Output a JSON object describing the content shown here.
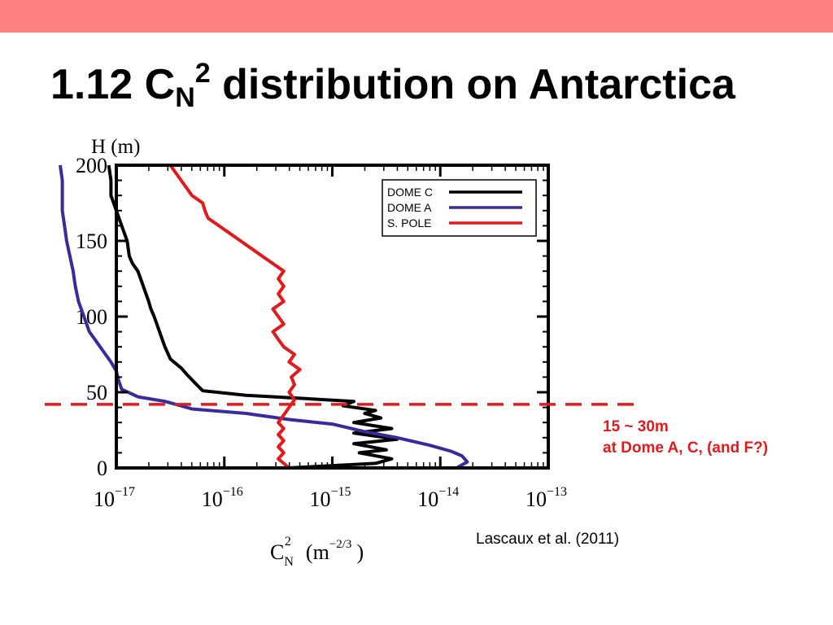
{
  "slide": {
    "title_prefix": "1.12 C",
    "title_sub": "N",
    "title_sup": "2",
    "title_rest": " distribution on Antarctica",
    "accent_color": "#ff8080"
  },
  "annotation": {
    "line1": "15 ~ 30m",
    "line2": "at Dome A, C, (and F?)",
    "color": "#e31a1c"
  },
  "citation": "Lascaux et al. (2011)",
  "chart_data": {
    "type": "line",
    "y_axis_label": "H (m)",
    "x_axis_label": {
      "base": "C",
      "sub": "N",
      "sup": "2",
      "unit_open": "(m",
      "unit_exp": "−2/3",
      "unit_close": ")"
    },
    "x_scale": "log",
    "xlim": [
      1e-17,
      1e-13
    ],
    "ylim": [
      0,
      200
    ],
    "y_ticks": [
      "0",
      "50",
      "100",
      "150",
      "200"
    ],
    "x_ticks": [
      {
        "base": "10",
        "exp": "−17"
      },
      {
        "base": "10",
        "exp": "−16"
      },
      {
        "base": "10",
        "exp": "−15"
      },
      {
        "base": "10",
        "exp": "−14"
      },
      {
        "base": "10",
        "exp": "−13"
      }
    ],
    "grid": false,
    "legend_position": "top-right",
    "threshold_line": {
      "h": 42,
      "color": "#e31a1c",
      "style": "dashed"
    },
    "series": [
      {
        "name": "DOME C",
        "color": "#000000",
        "points": [
          [
            -15.4,
            0
          ],
          [
            -14.6,
            3
          ],
          [
            -14.45,
            6
          ],
          [
            -14.75,
            10
          ],
          [
            -14.5,
            12
          ],
          [
            -14.8,
            16
          ],
          [
            -14.4,
            19
          ],
          [
            -14.8,
            23
          ],
          [
            -14.45,
            26
          ],
          [
            -14.8,
            30
          ],
          [
            -14.55,
            33
          ],
          [
            -14.7,
            36
          ],
          [
            -14.6,
            38
          ],
          [
            -14.9,
            41
          ],
          [
            -14.8,
            44
          ],
          [
            -15.3,
            46
          ],
          [
            -15.8,
            48
          ],
          [
            -16.2,
            51
          ],
          [
            -16.27,
            56
          ],
          [
            -16.35,
            62
          ],
          [
            -16.4,
            66
          ],
          [
            -16.5,
            72
          ],
          [
            -16.55,
            80
          ],
          [
            -16.6,
            90
          ],
          [
            -16.65,
            100
          ],
          [
            -16.68,
            105
          ],
          [
            -16.7,
            110
          ],
          [
            -16.75,
            120
          ],
          [
            -16.8,
            130
          ],
          [
            -16.85,
            135
          ],
          [
            -16.88,
            140
          ],
          [
            -16.9,
            150
          ],
          [
            -16.95,
            160
          ],
          [
            -17.0,
            170
          ],
          [
            -17.05,
            180
          ],
          [
            -17.05,
            190
          ],
          [
            -17.07,
            200
          ]
        ]
      },
      {
        "name": "DOME A",
        "color": "#3a2a9a",
        "points": [
          [
            -13.85,
            0
          ],
          [
            -13.75,
            4
          ],
          [
            -13.8,
            8
          ],
          [
            -13.9,
            11
          ],
          [
            -14.1,
            15
          ],
          [
            -14.4,
            20
          ],
          [
            -14.7,
            24
          ],
          [
            -15.0,
            29
          ],
          [
            -15.4,
            32
          ],
          [
            -15.8,
            36
          ],
          [
            -16.3,
            39
          ],
          [
            -16.4,
            41
          ],
          [
            -16.55,
            44
          ],
          [
            -16.8,
            47
          ],
          [
            -16.95,
            52
          ],
          [
            -16.98,
            58
          ],
          [
            -17.0,
            64
          ],
          [
            -17.05,
            70
          ],
          [
            -17.1,
            75
          ],
          [
            -17.15,
            80
          ],
          [
            -17.2,
            85
          ],
          [
            -17.25,
            90
          ],
          [
            -17.3,
            100
          ],
          [
            -17.35,
            110
          ],
          [
            -17.38,
            120
          ],
          [
            -17.4,
            130
          ],
          [
            -17.43,
            140
          ],
          [
            -17.46,
            150
          ],
          [
            -17.48,
            160
          ],
          [
            -17.5,
            170
          ],
          [
            -17.5,
            180
          ],
          [
            -17.5,
            190
          ],
          [
            -17.52,
            200
          ]
        ]
      },
      {
        "name": "S. POLE",
        "color": "#e31a1c",
        "points": [
          [
            -15.4,
            0
          ],
          [
            -15.45,
            3
          ],
          [
            -15.5,
            6
          ],
          [
            -15.45,
            10
          ],
          [
            -15.5,
            14
          ],
          [
            -15.45,
            18
          ],
          [
            -15.5,
            22
          ],
          [
            -15.45,
            26
          ],
          [
            -15.5,
            30
          ],
          [
            -15.45,
            35
          ],
          [
            -15.4,
            40
          ],
          [
            -15.35,
            45
          ],
          [
            -15.4,
            50
          ],
          [
            -15.35,
            55
          ],
          [
            -15.38,
            60
          ],
          [
            -15.3,
            65
          ],
          [
            -15.4,
            70
          ],
          [
            -15.35,
            75
          ],
          [
            -15.45,
            80
          ],
          [
            -15.5,
            85
          ],
          [
            -15.55,
            90
          ],
          [
            -15.45,
            95
          ],
          [
            -15.5,
            100
          ],
          [
            -15.55,
            105
          ],
          [
            -15.45,
            110
          ],
          [
            -15.5,
            115
          ],
          [
            -15.45,
            120
          ],
          [
            -15.5,
            125
          ],
          [
            -15.45,
            130
          ],
          [
            -15.55,
            135
          ],
          [
            -15.65,
            140
          ],
          [
            -15.75,
            145
          ],
          [
            -15.85,
            150
          ],
          [
            -15.95,
            155
          ],
          [
            -16.05,
            160
          ],
          [
            -16.15,
            165
          ],
          [
            -16.18,
            170
          ],
          [
            -16.2,
            175
          ],
          [
            -16.3,
            180
          ],
          [
            -16.35,
            185
          ],
          [
            -16.4,
            190
          ],
          [
            -16.45,
            195
          ],
          [
            -16.5,
            200
          ]
        ]
      }
    ]
  }
}
